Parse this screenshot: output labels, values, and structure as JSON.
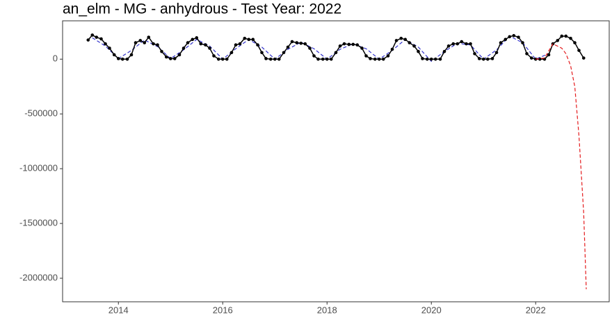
{
  "chart_data": {
    "type": "line",
    "title": "an_elm - MG - anhydrous - Test Year: 2022",
    "xlim": [
      2012.93,
      2023.41
    ],
    "xticks": [
      2014,
      2016,
      2018,
      2020,
      2022
    ],
    "ylim": [
      -2215000,
      350000
    ],
    "yticks": [
      0,
      -500000,
      -1000000,
      -1500000,
      -2000000
    ],
    "grid": false,
    "series": [
      {
        "color": "#3333cc",
        "dash": true,
        "points": false,
        "x": [
          2013.5,
          2013.75,
          2014.0,
          2014.25,
          2014.5,
          2014.75,
          2015.0,
          2015.25,
          2015.5,
          2015.75,
          2016.0,
          2016.25,
          2016.5,
          2016.75,
          2017.0,
          2017.25,
          2017.5,
          2017.75,
          2018.0,
          2018.25,
          2018.5,
          2018.75,
          2019.0,
          2019.25,
          2019.5,
          2019.75,
          2020.0,
          2020.25,
          2020.5,
          2020.75,
          2021.0,
          2021.25,
          2021.5,
          2021.75,
          2022.0,
          2022.25
        ],
        "values": [
          195000,
          120000,
          5000,
          80000,
          175000,
          115000,
          5000,
          85000,
          180000,
          120000,
          0,
          95000,
          180000,
          110000,
          0,
          90000,
          155000,
          95000,
          0,
          90000,
          140000,
          95000,
          0,
          80000,
          180000,
          110000,
          -20000,
          70000,
          145000,
          130000,
          0,
          85000,
          210000,
          150000,
          0,
          50000
        ]
      },
      {
        "color": "#000000",
        "dash": false,
        "points": true,
        "x": [
          2013.42,
          2013.5,
          2013.58,
          2013.67,
          2013.75,
          2013.83,
          2013.92,
          2014.0,
          2014.08,
          2014.17,
          2014.25,
          2014.33,
          2014.42,
          2014.5,
          2014.58,
          2014.67,
          2014.75,
          2014.83,
          2014.92,
          2015.0,
          2015.08,
          2015.17,
          2015.25,
          2015.33,
          2015.42,
          2015.5,
          2015.58,
          2015.67,
          2015.75,
          2015.83,
          2015.92,
          2016.0,
          2016.08,
          2016.17,
          2016.25,
          2016.33,
          2016.42,
          2016.5,
          2016.58,
          2016.67,
          2016.75,
          2016.83,
          2016.92,
          2017.0,
          2017.08,
          2017.17,
          2017.25,
          2017.33,
          2017.42,
          2017.5,
          2017.58,
          2017.67,
          2017.75,
          2017.83,
          2017.92,
          2018.0,
          2018.08,
          2018.17,
          2018.25,
          2018.33,
          2018.42,
          2018.5,
          2018.58,
          2018.67,
          2018.75,
          2018.83,
          2018.92,
          2019.0,
          2019.08,
          2019.17,
          2019.25,
          2019.33,
          2019.42,
          2019.5,
          2019.58,
          2019.67,
          2019.75,
          2019.83,
          2019.92,
          2020.0,
          2020.08,
          2020.17,
          2020.25,
          2020.33,
          2020.42,
          2020.5,
          2020.58,
          2020.67,
          2020.75,
          2020.83,
          2020.92,
          2021.0,
          2021.08,
          2021.17,
          2021.25,
          2021.33,
          2021.42,
          2021.5,
          2021.58,
          2021.67,
          2021.75,
          2021.83,
          2021.92,
          2022.0,
          2022.08,
          2022.17,
          2022.25,
          2022.33,
          2022.42,
          2022.5,
          2022.58,
          2022.67,
          2022.75,
          2022.83,
          2022.92
        ],
        "values": [
          175000,
          220000,
          200000,
          185000,
          140000,
          100000,
          40000,
          5000,
          0,
          0,
          40000,
          150000,
          170000,
          150000,
          200000,
          140000,
          130000,
          70000,
          20000,
          5000,
          5000,
          40000,
          100000,
          150000,
          180000,
          195000,
          140000,
          130000,
          100000,
          30000,
          0,
          0,
          0,
          60000,
          130000,
          140000,
          190000,
          180000,
          180000,
          130000,
          60000,
          5000,
          0,
          0,
          0,
          60000,
          110000,
          160000,
          150000,
          145000,
          140000,
          100000,
          30000,
          0,
          0,
          0,
          0,
          60000,
          120000,
          140000,
          135000,
          135000,
          130000,
          100000,
          30000,
          5000,
          0,
          0,
          0,
          30000,
          90000,
          170000,
          190000,
          180000,
          150000,
          120000,
          70000,
          5000,
          0,
          0,
          0,
          0,
          70000,
          120000,
          140000,
          140000,
          160000,
          140000,
          140000,
          50000,
          5000,
          0,
          0,
          5000,
          60000,
          150000,
          180000,
          205000,
          215000,
          200000,
          150000,
          50000,
          10000,
          0,
          0,
          0,
          40000,
          140000,
          170000,
          210000,
          210000,
          190000,
          150000,
          80000,
          10000
        ]
      },
      {
        "color": "#e41a1c",
        "dash": true,
        "points": false,
        "x": [
          2022.0,
          2022.17,
          2022.33,
          2022.5,
          2022.58,
          2022.67,
          2022.75,
          2022.83,
          2022.92,
          2022.97
        ],
        "values": [
          0,
          10000,
          140000,
          100000,
          50000,
          -60000,
          -250000,
          -700000,
          -1400000,
          -2100000
        ]
      }
    ]
  }
}
